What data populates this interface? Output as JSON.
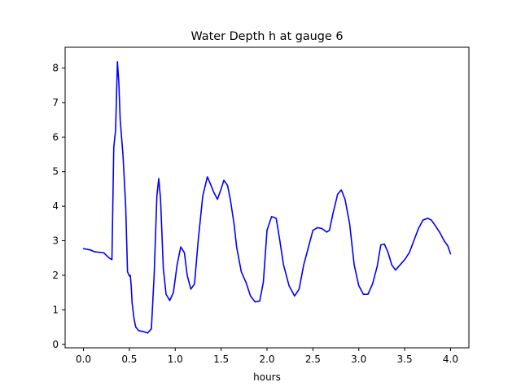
{
  "chart_data": {
    "type": "line",
    "title": "Water Depth h at gauge 6",
    "xlabel": "hours",
    "ylabel": "",
    "xlim": [
      -0.2,
      4.2
    ],
    "ylim": [
      -0.1,
      8.6
    ],
    "xticks": [
      0.0,
      0.5,
      1.0,
      1.5,
      2.0,
      2.5,
      3.0,
      3.5,
      4.0
    ],
    "xtick_labels": [
      "0.0",
      "0.5",
      "1.0",
      "1.5",
      "2.0",
      "2.5",
      "3.0",
      "3.5",
      "4.0"
    ],
    "yticks": [
      0,
      1,
      2,
      3,
      4,
      5,
      6,
      7,
      8
    ],
    "ytick_labels": [
      "0",
      "1",
      "2",
      "3",
      "4",
      "5",
      "6",
      "7",
      "8"
    ],
    "grid": false,
    "line_color": "#0000ff",
    "series": [
      {
        "name": "",
        "x": [
          0.0,
          0.08,
          0.12,
          0.22,
          0.28,
          0.31,
          0.33,
          0.35,
          0.37,
          0.385,
          0.4,
          0.43,
          0.46,
          0.48,
          0.5,
          0.51,
          0.52,
          0.53,
          0.55,
          0.57,
          0.6,
          0.65,
          0.7,
          0.74,
          0.77,
          0.8,
          0.82,
          0.84,
          0.87,
          0.9,
          0.94,
          0.98,
          1.02,
          1.06,
          1.1,
          1.13,
          1.17,
          1.21,
          1.25,
          1.3,
          1.35,
          1.39,
          1.42,
          1.46,
          1.5,
          1.53,
          1.57,
          1.6,
          1.64,
          1.67,
          1.72,
          1.77,
          1.82,
          1.87,
          1.92,
          1.96,
          2.0,
          2.05,
          2.1,
          2.14,
          2.18,
          2.24,
          2.3,
          2.35,
          2.4,
          2.45,
          2.5,
          2.55,
          2.6,
          2.65,
          2.68,
          2.72,
          2.77,
          2.81,
          2.85,
          2.9,
          2.95,
          3.0,
          3.05,
          3.1,
          3.15,
          3.2,
          3.24,
          3.28,
          3.32,
          3.36,
          3.4,
          3.45,
          3.5,
          3.55,
          3.6,
          3.65,
          3.7,
          3.75,
          3.79,
          3.83,
          3.88,
          3.93,
          3.97,
          4.0
        ],
        "y": [
          2.77,
          2.73,
          2.68,
          2.65,
          2.5,
          2.45,
          5.7,
          6.2,
          8.18,
          7.6,
          6.5,
          5.5,
          4.0,
          2.1,
          1.98,
          2.0,
          1.7,
          1.2,
          0.75,
          0.5,
          0.4,
          0.37,
          0.33,
          0.45,
          2.0,
          4.3,
          4.8,
          4.2,
          2.2,
          1.45,
          1.27,
          1.5,
          2.3,
          2.82,
          2.65,
          2.0,
          1.6,
          1.75,
          3.0,
          4.3,
          4.85,
          4.6,
          4.4,
          4.2,
          4.5,
          4.75,
          4.6,
          4.2,
          3.5,
          2.8,
          2.1,
          1.8,
          1.4,
          1.23,
          1.25,
          1.8,
          3.3,
          3.7,
          3.65,
          3.0,
          2.3,
          1.7,
          1.4,
          1.6,
          2.3,
          2.8,
          3.3,
          3.38,
          3.35,
          3.25,
          3.3,
          3.8,
          4.35,
          4.47,
          4.2,
          3.5,
          2.3,
          1.7,
          1.45,
          1.45,
          1.75,
          2.25,
          2.88,
          2.9,
          2.65,
          2.3,
          2.15,
          2.3,
          2.45,
          2.65,
          3.0,
          3.35,
          3.6,
          3.65,
          3.6,
          3.45,
          3.25,
          3.0,
          2.85,
          2.62
        ]
      }
    ]
  }
}
